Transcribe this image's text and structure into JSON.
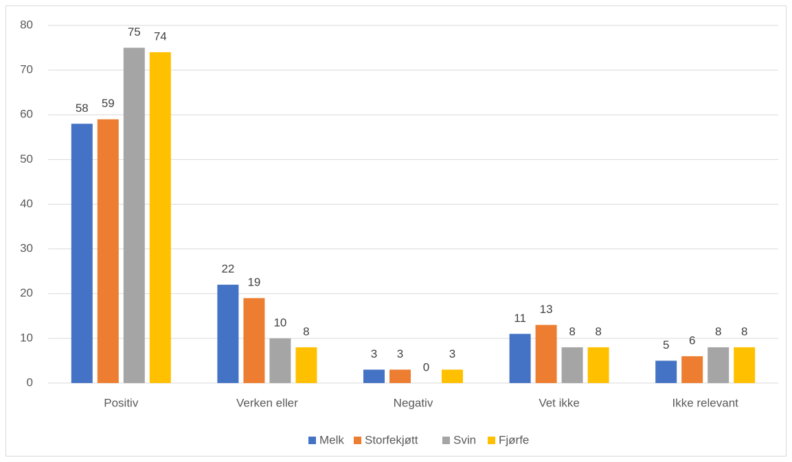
{
  "chart_data": {
    "type": "bar",
    "categories": [
      "Positiv",
      "Verken eller",
      "Negativ",
      "Vet ikke",
      "Ikke relevant"
    ],
    "series": [
      {
        "name": "Melk",
        "color": "#4472c4",
        "values": [
          58,
          22,
          3,
          11,
          5
        ]
      },
      {
        "name": "Storfekjøtt",
        "color": "#ed7d31",
        "values": [
          59,
          19,
          3,
          13,
          6
        ]
      },
      {
        "name": "Svin",
        "color": "#a5a5a5",
        "values": [
          75,
          10,
          0,
          8,
          8
        ]
      },
      {
        "name": "Fjørfe",
        "color": "#ffc000",
        "values": [
          74,
          8,
          3,
          8,
          8
        ]
      }
    ],
    "ylim": [
      0,
      80
    ],
    "yticks": [
      0,
      10,
      20,
      30,
      40,
      50,
      60,
      70,
      80
    ],
    "grid": true,
    "legend": "bottom"
  }
}
